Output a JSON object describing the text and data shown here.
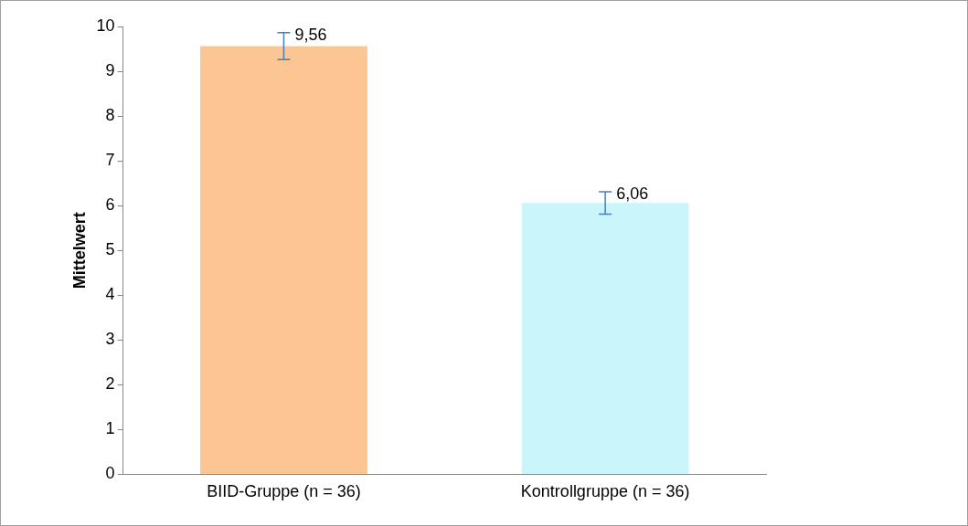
{
  "chart_data": {
    "type": "bar",
    "ylabel": "Mittelwert",
    "categories": [
      "BIID-Gruppe (n = 36)",
      "Kontrollgruppe (n = 36)"
    ],
    "values": [
      9.56,
      6.06
    ],
    "errors": [
      0.3,
      0.25
    ],
    "value_labels": [
      "9,56",
      "6,06"
    ],
    "colors": [
      "#fcc594",
      "#c9f5fb"
    ],
    "ylim": [
      0,
      10
    ],
    "yticks": [
      0,
      1,
      2,
      3,
      4,
      5,
      6,
      7,
      8,
      9,
      10
    ],
    "grid": false,
    "legend": false
  }
}
